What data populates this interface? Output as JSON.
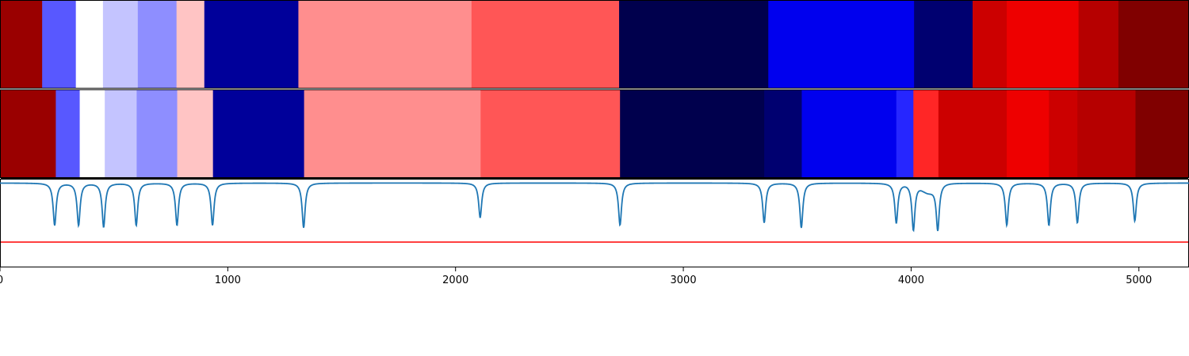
{
  "chart_data": {
    "type": "heatmap",
    "title": "",
    "xlabel": "",
    "ylabel": "",
    "xlim": [
      0,
      5220
    ],
    "grid": false,
    "x_ticks": [
      0,
      1000,
      2000,
      3000,
      4000,
      5000
    ],
    "x_tick_labels": [
      "0",
      "1000",
      "2000",
      "3000",
      "4000",
      "5000"
    ],
    "colormap": "seismic",
    "rows": [
      {
        "segments": [
          {
            "start": 0,
            "end": 185,
            "color": "#9a0000"
          },
          {
            "start": 185,
            "end": 333,
            "color": "#5858ff"
          },
          {
            "start": 333,
            "end": 452,
            "color": "#ffffff"
          },
          {
            "start": 452,
            "end": 605,
            "color": "#c4c4ff"
          },
          {
            "start": 605,
            "end": 775,
            "color": "#8e8eff"
          },
          {
            "start": 775,
            "end": 897,
            "color": "#ffc4c4"
          },
          {
            "start": 897,
            "end": 1310,
            "color": "#00009a"
          },
          {
            "start": 1310,
            "end": 2070,
            "color": "#ff8e8e"
          },
          {
            "start": 2070,
            "end": 2718,
            "color": "#ff5656"
          },
          {
            "start": 2718,
            "end": 3373,
            "color": "#00004d"
          },
          {
            "start": 3373,
            "end": 4013,
            "color": "#0000ee"
          },
          {
            "start": 4013,
            "end": 4270,
            "color": "#000070"
          },
          {
            "start": 4270,
            "end": 4420,
            "color": "#cc0000"
          },
          {
            "start": 4420,
            "end": 4735,
            "color": "#ee0000"
          },
          {
            "start": 4735,
            "end": 4910,
            "color": "#b60000"
          },
          {
            "start": 4910,
            "end": 5220,
            "color": "#800000"
          }
        ]
      },
      {
        "segments": [
          {
            "start": 0,
            "end": 245,
            "color": "#9a0000"
          },
          {
            "start": 245,
            "end": 350,
            "color": "#5858ff"
          },
          {
            "start": 350,
            "end": 460,
            "color": "#ffffff"
          },
          {
            "start": 460,
            "end": 600,
            "color": "#c4c4ff"
          },
          {
            "start": 600,
            "end": 778,
            "color": "#8e8eff"
          },
          {
            "start": 778,
            "end": 935,
            "color": "#ffc4c4"
          },
          {
            "start": 935,
            "end": 1335,
            "color": "#00009a"
          },
          {
            "start": 1335,
            "end": 2110,
            "color": "#ff8e8e"
          },
          {
            "start": 2110,
            "end": 2722,
            "color": "#ff5656"
          },
          {
            "start": 2722,
            "end": 3355,
            "color": "#00004d"
          },
          {
            "start": 3355,
            "end": 3520,
            "color": "#000070"
          },
          {
            "start": 3520,
            "end": 3935,
            "color": "#0000ee"
          },
          {
            "start": 3935,
            "end": 4010,
            "color": "#2626ff"
          },
          {
            "start": 4010,
            "end": 4120,
            "color": "#ff2626"
          },
          {
            "start": 4120,
            "end": 4420,
            "color": "#cc0000"
          },
          {
            "start": 4420,
            "end": 4605,
            "color": "#ee0000"
          },
          {
            "start": 4605,
            "end": 4730,
            "color": "#cc0000"
          },
          {
            "start": 4730,
            "end": 4985,
            "color": "#b60000"
          },
          {
            "start": 4985,
            "end": 5220,
            "color": "#800000"
          }
        ]
      }
    ],
    "signal": {
      "color": "#1f77b4",
      "baseline": 0,
      "ylim": [
        -1.0,
        0.05
      ],
      "dips": [
        {
          "x": 240,
          "depth": -0.5
        },
        {
          "x": 345,
          "depth": -0.5
        },
        {
          "x": 455,
          "depth": -0.52
        },
        {
          "x": 598,
          "depth": -0.5
        },
        {
          "x": 777,
          "depth": -0.5
        },
        {
          "x": 933,
          "depth": -0.5
        },
        {
          "x": 1333,
          "depth": -0.53
        },
        {
          "x": 2108,
          "depth": -0.41
        },
        {
          "x": 2722,
          "depth": -0.5
        },
        {
          "x": 3355,
          "depth": -0.47
        },
        {
          "x": 3518,
          "depth": -0.53
        },
        {
          "x": 3935,
          "depth": -0.47
        },
        {
          "x": 4010,
          "depth": -0.55
        },
        {
          "x": 4117,
          "depth": -0.53
        },
        {
          "x": 4420,
          "depth": -0.5
        },
        {
          "x": 4605,
          "depth": -0.5
        },
        {
          "x": 4730,
          "depth": -0.47
        },
        {
          "x": 4982,
          "depth": -0.45
        }
      ],
      "bumps": [
        {
          "x": 4075,
          "height": -0.1
        }
      ]
    },
    "threshold": {
      "y": -0.7,
      "color": "#ff0000"
    }
  }
}
